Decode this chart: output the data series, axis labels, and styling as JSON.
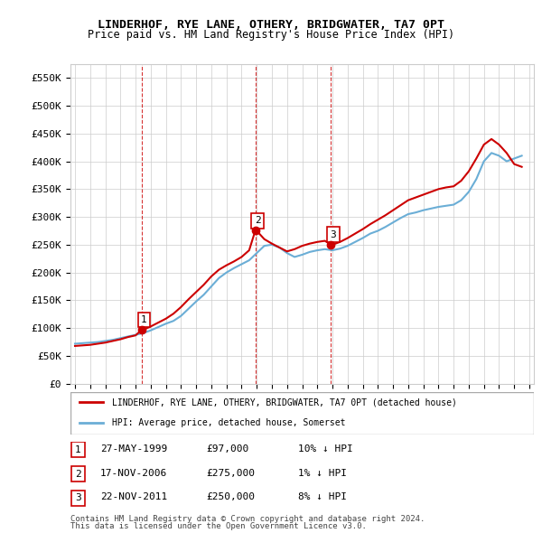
{
  "title": "LINDERHOF, RYE LANE, OTHERY, BRIDGWATER, TA7 0PT",
  "subtitle": "Price paid vs. HM Land Registry's House Price Index (HPI)",
  "ylim": [
    0,
    575000
  ],
  "yticks": [
    0,
    50000,
    100000,
    150000,
    200000,
    250000,
    300000,
    350000,
    400000,
    450000,
    500000,
    550000
  ],
  "ytick_labels": [
    "£0",
    "£50K",
    "£100K",
    "£150K",
    "£200K",
    "£250K",
    "£300K",
    "£350K",
    "£400K",
    "£450K",
    "£500K",
    "£550K"
  ],
  "legend_label_red": "LINDERHOF, RYE LANE, OTHERY, BRIDGWATER, TA7 0PT (detached house)",
  "legend_label_blue": "HPI: Average price, detached house, Somerset",
  "transactions": [
    {
      "num": 1,
      "date": "27-MAY-1999",
      "price": 97000,
      "pct": "10%",
      "dir": "↓",
      "x": 1999.4
    },
    {
      "num": 2,
      "date": "17-NOV-2006",
      "price": 275000,
      "pct": "1%",
      "dir": "↓",
      "x": 2006.9
    },
    {
      "num": 3,
      "date": "22-NOV-2011",
      "price": 250000,
      "pct": "8%",
      "dir": "↓",
      "x": 2011.9
    }
  ],
  "footer1": "Contains HM Land Registry data © Crown copyright and database right 2024.",
  "footer2": "This data is licensed under the Open Government Licence v3.0.",
  "hpi_color": "#6baed6",
  "price_color": "#cc0000",
  "vline_color": "#cc0000",
  "grid_color": "#cccccc",
  "hpi_x": [
    1995.0,
    1995.5,
    1996.0,
    1996.5,
    1997.0,
    1997.5,
    1998.0,
    1998.5,
    1999.0,
    1999.5,
    2000.0,
    2000.5,
    2001.0,
    2001.5,
    2002.0,
    2002.5,
    2003.0,
    2003.5,
    2004.0,
    2004.5,
    2005.0,
    2005.5,
    2006.0,
    2006.5,
    2007.0,
    2007.5,
    2008.0,
    2008.5,
    2009.0,
    2009.5,
    2010.0,
    2010.5,
    2011.0,
    2011.5,
    2012.0,
    2012.5,
    2013.0,
    2013.5,
    2014.0,
    2014.5,
    2015.0,
    2015.5,
    2016.0,
    2016.5,
    2017.0,
    2017.5,
    2018.0,
    2018.5,
    2019.0,
    2019.5,
    2020.0,
    2020.5,
    2021.0,
    2021.5,
    2022.0,
    2022.5,
    2023.0,
    2023.5,
    2024.0,
    2024.5
  ],
  "hpi_y": [
    72000,
    73000,
    74000,
    75000,
    77000,
    79000,
    82000,
    85000,
    88000,
    91000,
    96000,
    102000,
    108000,
    113000,
    122000,
    135000,
    148000,
    160000,
    175000,
    190000,
    200000,
    208000,
    215000,
    222000,
    235000,
    248000,
    250000,
    245000,
    235000,
    228000,
    232000,
    237000,
    240000,
    242000,
    240000,
    243000,
    248000,
    255000,
    262000,
    270000,
    275000,
    282000,
    290000,
    298000,
    305000,
    308000,
    312000,
    315000,
    318000,
    320000,
    322000,
    330000,
    345000,
    368000,
    400000,
    415000,
    410000,
    400000,
    405000,
    410000
  ],
  "price_x": [
    1995.0,
    1995.5,
    1996.0,
    1996.5,
    1997.0,
    1997.5,
    1998.0,
    1998.5,
    1999.0,
    1999.4,
    1999.5,
    2000.0,
    2000.5,
    2001.0,
    2001.5,
    2002.0,
    2002.5,
    2003.0,
    2003.5,
    2004.0,
    2004.5,
    2005.0,
    2005.5,
    2006.0,
    2006.5,
    2006.9,
    2007.0,
    2007.5,
    2008.0,
    2008.5,
    2009.0,
    2009.5,
    2010.0,
    2010.5,
    2011.0,
    2011.5,
    2011.9,
    2012.0,
    2012.5,
    2013.0,
    2013.5,
    2014.0,
    2014.5,
    2015.0,
    2015.5,
    2016.0,
    2016.5,
    2017.0,
    2017.5,
    2018.0,
    2018.5,
    2019.0,
    2019.5,
    2020.0,
    2020.5,
    2021.0,
    2021.5,
    2022.0,
    2022.5,
    2023.0,
    2023.5,
    2024.0,
    2024.5
  ],
  "price_y": [
    68000,
    69000,
    70000,
    72000,
    74000,
    77000,
    80000,
    84000,
    87000,
    97000,
    97000,
    103000,
    110000,
    117000,
    126000,
    138000,
    152000,
    165000,
    178000,
    193000,
    205000,
    213000,
    220000,
    228000,
    240000,
    275000,
    275000,
    260000,
    252000,
    245000,
    238000,
    242000,
    248000,
    252000,
    255000,
    257000,
    250000,
    250000,
    255000,
    262000,
    270000,
    278000,
    287000,
    295000,
    303000,
    312000,
    321000,
    330000,
    335000,
    340000,
    345000,
    350000,
    353000,
    355000,
    365000,
    382000,
    405000,
    430000,
    440000,
    430000,
    415000,
    395000,
    390000
  ]
}
